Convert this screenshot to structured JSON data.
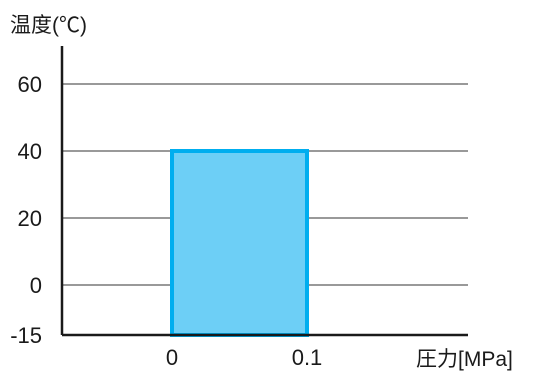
{
  "chart_data": {
    "type": "area",
    "title": "",
    "ylabel": "温度(℃)",
    "xlabel": "圧力[MPa]",
    "y_ticks": [
      -15,
      0,
      20,
      40,
      60
    ],
    "y_tick_labels": [
      "-15",
      "0",
      "20",
      "40",
      "60"
    ],
    "x_ticks": [
      0,
      0.1
    ],
    "x_tick_labels": [
      "0",
      "0.1"
    ],
    "xlim": [
      -0.08,
      0.22
    ],
    "ylim": [
      -15,
      75
    ],
    "grid": true,
    "region": {
      "x": [
        0,
        0.1
      ],
      "y": [
        -15,
        40
      ],
      "fill_color": "#6dcff6",
      "stroke_color": "#00aeef"
    }
  }
}
